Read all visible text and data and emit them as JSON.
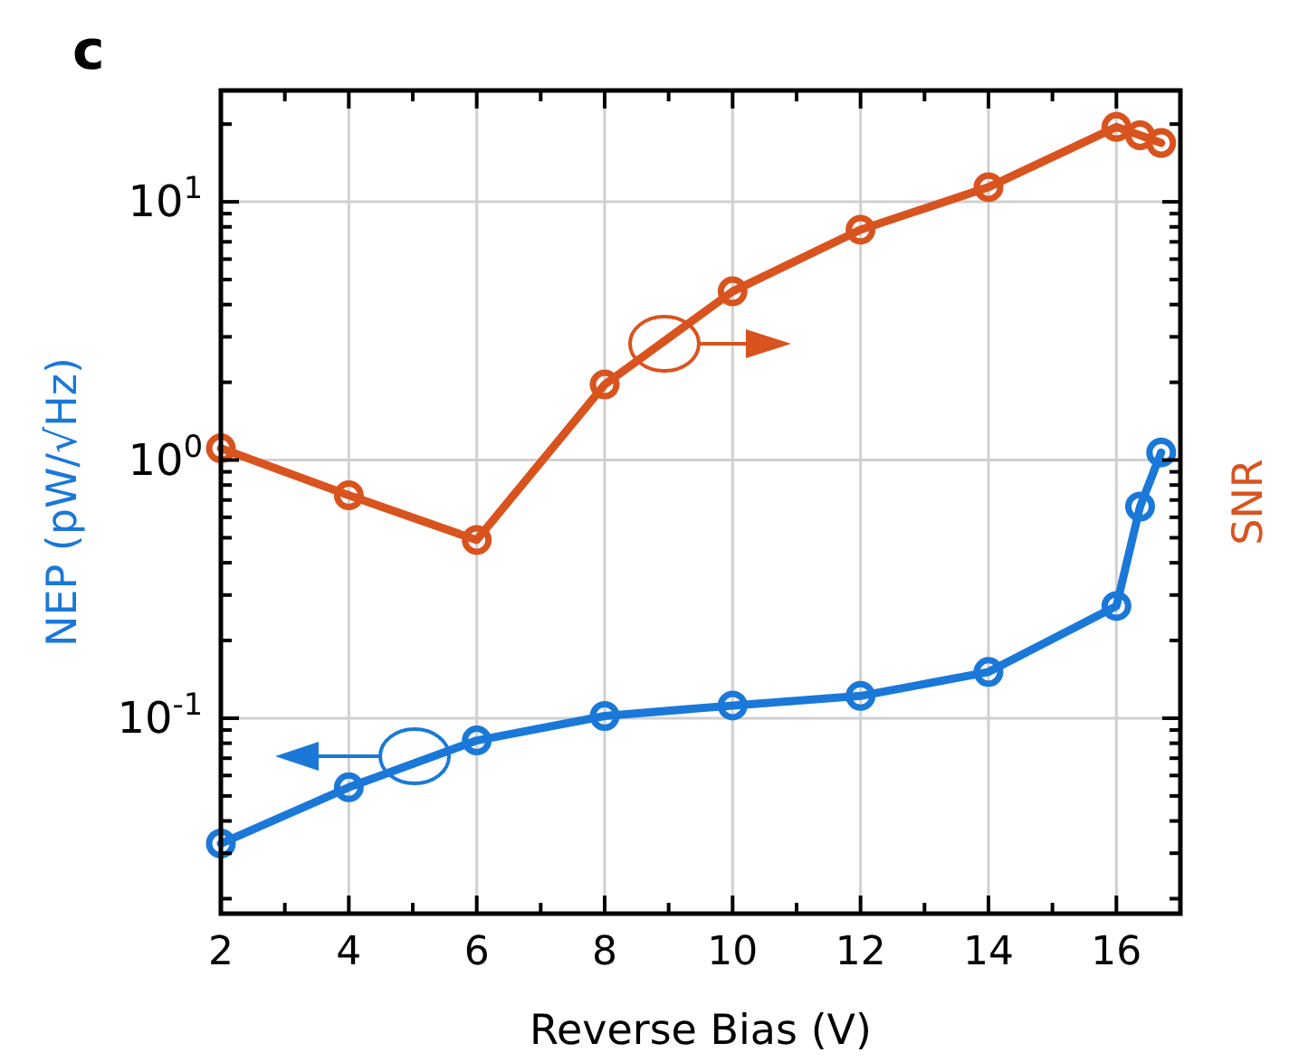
{
  "chart_data": {
    "type": "line",
    "title": "c",
    "xlabel": "Reverse Bias (V)",
    "ylabel": "NEP (pW/√Hz)",
    "y2label": "SNR",
    "log": "y",
    "grid": true,
    "marker": "circle",
    "line_style": "solid",
    "tick_labels": "xy",
    "xlim": [
      2,
      17
    ],
    "xticks": [
      2,
      {
        "value": 3,
        "label": null
      },
      4,
      {
        "value": 5,
        "label": null
      },
      6,
      {
        "value": 7,
        "label": null
      },
      8,
      {
        "value": 9,
        "label": null
      },
      10,
      {
        "value": 11,
        "label": null
      },
      12,
      {
        "value": 13,
        "label": null
      },
      14,
      {
        "value": 15,
        "label": null
      },
      16
    ],
    "ylim": [
      0.0175,
      27
    ],
    "yticks": [
      {
        "value": 0.02,
        "label": null
      },
      {
        "value": 0.03,
        "label": null
      },
      {
        "value": 0.04,
        "label": null
      },
      {
        "value": 0.05,
        "label": null
      },
      {
        "value": 0.06,
        "label": null
      },
      {
        "value": 0.07,
        "label": null
      },
      {
        "value": 0.08,
        "label": null
      },
      {
        "value": 0.09,
        "label": null
      },
      {
        "value": 0.1,
        "label": "10$^{-1}$"
      },
      {
        "value": 0.2,
        "label": null
      },
      {
        "value": 0.3,
        "label": null
      },
      {
        "value": 0.4,
        "label": null
      },
      {
        "value": 0.5,
        "label": null
      },
      {
        "value": 0.6,
        "label": null
      },
      {
        "value": 0.7,
        "label": null
      },
      {
        "value": 0.8,
        "label": null
      },
      {
        "value": 0.9,
        "label": null
      },
      {
        "value": 1,
        "label": "10$^{0}$"
      },
      {
        "value": 2,
        "label": null
      },
      {
        "value": 3,
        "label": null
      },
      {
        "value": 4,
        "label": null
      },
      {
        "value": 5,
        "label": null
      },
      {
        "value": 6,
        "label": null
      },
      {
        "value": 7,
        "label": null
      },
      {
        "value": 8,
        "label": null
      },
      {
        "value": 9,
        "label": null
      },
      {
        "value": 10,
        "label": "10$^{1}$"
      },
      {
        "value": 20,
        "label": null
      }
    ],
    "series": [
      {
        "color": "#1a78d8",
        "x": [
          2,
          4,
          6,
          8,
          10,
          12,
          14,
          16,
          16.37,
          16.7
        ],
        "values": [
          0.0327,
          0.054,
          0.082,
          0.102,
          0.112,
          0.122,
          0.151,
          0.272,
          0.66,
          1.07
        ]
      },
      {
        "color": "#d9531e",
        "x": [
          2,
          4,
          6,
          8,
          10,
          12,
          14,
          16,
          16.37,
          16.7
        ],
        "values": [
          1.11,
          0.73,
          0.49,
          1.96,
          4.5,
          7.8,
          11.4,
          19.5,
          18.1,
          16.9
        ]
      }
    ]
  }
}
